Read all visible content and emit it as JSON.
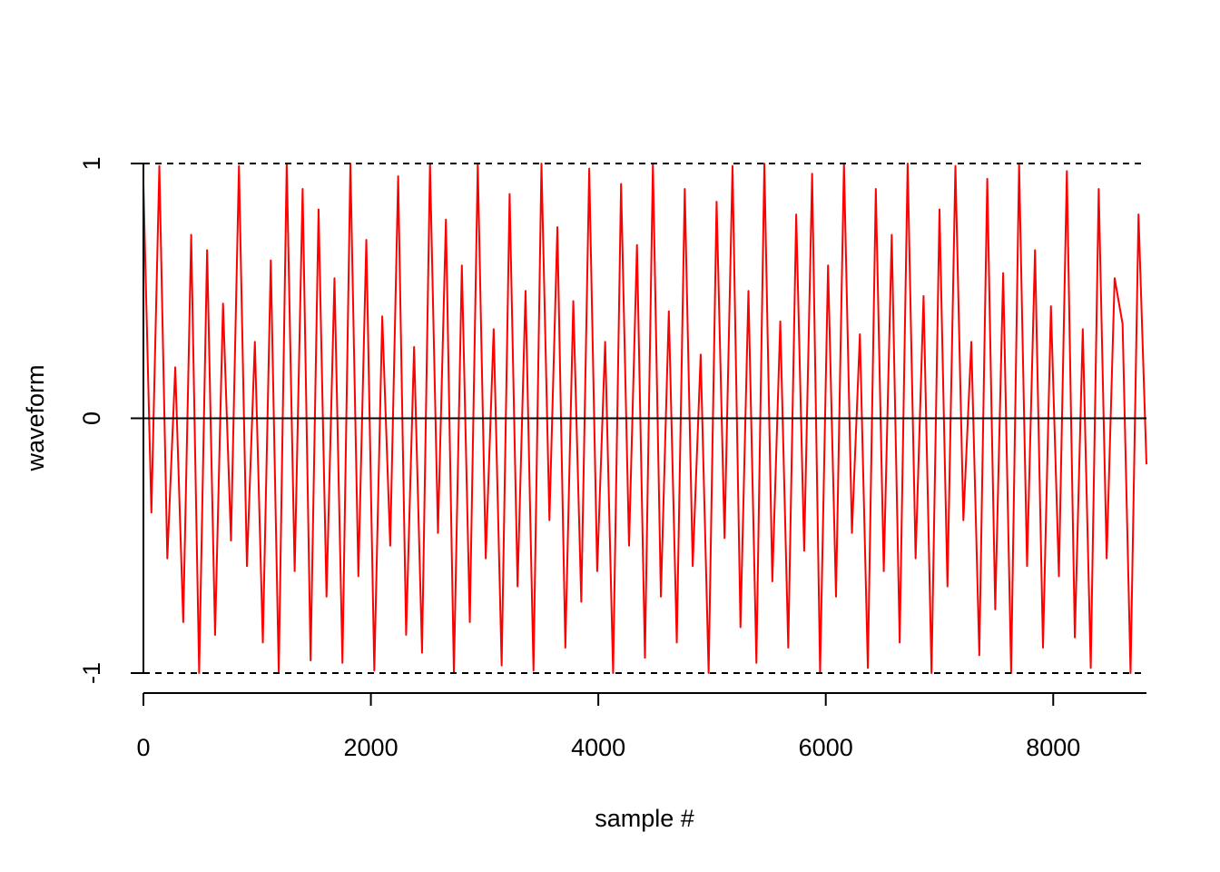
{
  "chart_data": {
    "type": "line",
    "xlabel": "sample #",
    "ylabel": "waveform",
    "xlim": [
      0,
      8820
    ],
    "ylim": [
      -1,
      1
    ],
    "xticks": [
      0,
      2000,
      4000,
      6000,
      8000
    ],
    "yticks": [
      -1,
      0,
      1
    ],
    "reference_lines": [
      {
        "y": 1,
        "dashed": true
      },
      {
        "y": 0,
        "dashed": false
      },
      {
        "y": -1,
        "dashed": true
      }
    ],
    "x": [
      0,
      70,
      140,
      210,
      280,
      350,
      420,
      490,
      560,
      630,
      700,
      770,
      840,
      910,
      980,
      1050,
      1120,
      1190,
      1260,
      1330,
      1400,
      1470,
      1540,
      1610,
      1680,
      1750,
      1820,
      1890,
      1960,
      2030,
      2100,
      2170,
      2240,
      2310,
      2380,
      2450,
      2520,
      2590,
      2660,
      2730,
      2800,
      2870,
      2940,
      3010,
      3080,
      3150,
      3220,
      3290,
      3360,
      3430,
      3500,
      3570,
      3640,
      3710,
      3780,
      3850,
      3920,
      3990,
      4060,
      4130,
      4200,
      4270,
      4340,
      4410,
      4480,
      4550,
      4620,
      4690,
      4760,
      4830,
      4900,
      4970,
      5040,
      5110,
      5180,
      5250,
      5320,
      5390,
      5460,
      5530,
      5600,
      5670,
      5740,
      5810,
      5880,
      5950,
      6020,
      6090,
      6160,
      6230,
      6300,
      6370,
      6440,
      6510,
      6580,
      6650,
      6720,
      6790,
      6860,
      6930,
      7000,
      7070,
      7140,
      7210,
      7280,
      7350,
      7420,
      7490,
      7560,
      7630,
      7700,
      7770,
      7840,
      7910,
      7980,
      8050,
      8120,
      8190,
      8260,
      8330,
      8400,
      8470,
      8540,
      8610,
      8680,
      8750,
      8820
    ],
    "series": [
      {
        "color": "#ff0000",
        "values": [
          0.92,
          -0.37,
          0.99,
          -0.55,
          0.2,
          -0.8,
          0.72,
          -1,
          0.66,
          -0.85,
          0.45,
          -0.48,
          0.99,
          -0.58,
          0.3,
          -0.88,
          0.62,
          -1,
          1,
          -0.6,
          0.9,
          -0.95,
          0.82,
          -0.7,
          0.55,
          -0.96,
          1,
          -0.62,
          0.7,
          -0.99,
          0.4,
          -0.5,
          0.95,
          -0.85,
          0.28,
          -0.92,
          1,
          -0.45,
          0.78,
          -1,
          0.6,
          -0.8,
          1,
          -0.55,
          0.35,
          -0.97,
          0.88,
          -0.66,
          0.5,
          -0.99,
          1,
          -0.4,
          0.75,
          -0.9,
          0.46,
          -0.72,
          0.98,
          -0.6,
          0.3,
          -1,
          0.92,
          -0.5,
          0.68,
          -0.94,
          1,
          -0.7,
          0.42,
          -0.88,
          0.9,
          -0.58,
          0.25,
          -1,
          0.85,
          -0.47,
          0.99,
          -0.82,
          0.5,
          -0.96,
          1,
          -0.64,
          0.38,
          -0.9,
          0.8,
          -0.52,
          0.96,
          -1,
          0.6,
          -0.7,
          1,
          -0.45,
          0.33,
          -0.98,
          0.9,
          -0.6,
          0.72,
          -0.88,
          1,
          -0.55,
          0.48,
          -1,
          0.82,
          -0.66,
          0.99,
          -0.4,
          0.3,
          -0.93,
          0.94,
          -0.75,
          0.57,
          -1,
          1,
          -0.58,
          0.66,
          -0.9,
          0.44,
          -0.62,
          0.97,
          -0.86,
          0.35,
          -0.98,
          0.9,
          -0.55,
          0.55,
          0.37,
          -1,
          0.8,
          -0.18
        ]
      }
    ]
  }
}
